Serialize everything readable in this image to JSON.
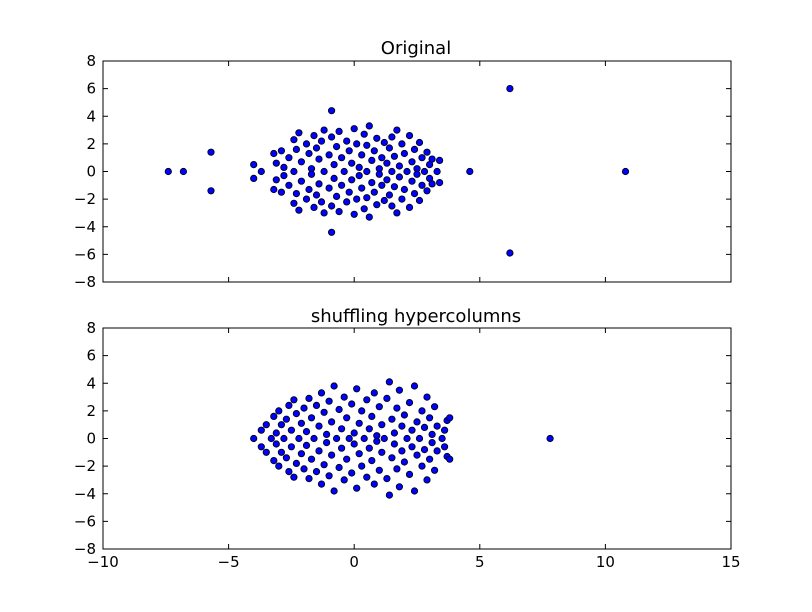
{
  "chart_data": [
    {
      "type": "scatter",
      "title": "Original",
      "xlabel": "",
      "ylabel": "",
      "xlim": [
        -10,
        15
      ],
      "ylim": [
        -8,
        8
      ],
      "xticks": [
        -10,
        -5,
        0,
        5,
        10,
        15
      ],
      "yticks": [
        -8,
        -6,
        -4,
        -2,
        0,
        2,
        4,
        6,
        8
      ],
      "show_x_tick_labels": false,
      "grid": false,
      "marker_color": "#0000ff",
      "points": [
        [
          -7.4,
          0
        ],
        [
          -6.8,
          0
        ],
        [
          -5.7,
          1.4
        ],
        [
          -5.7,
          -1.4
        ],
        [
          4.6,
          0
        ],
        [
          10.8,
          0
        ],
        [
          6.2,
          6.0
        ],
        [
          6.2,
          -5.9
        ],
        [
          -0.9,
          4.4
        ],
        [
          -0.9,
          -4.4
        ],
        [
          -4.0,
          0.5
        ],
        [
          -4.0,
          -0.5
        ],
        [
          -3.7,
          0
        ],
        [
          -3.2,
          1.3
        ],
        [
          -3.2,
          -1.3
        ],
        [
          -3.1,
          0.6
        ],
        [
          -3.1,
          -0.6
        ],
        [
          -2.9,
          1.5
        ],
        [
          -2.9,
          -1.5
        ],
        [
          -2.8,
          0.3
        ],
        [
          -2.8,
          -0.3
        ],
        [
          -2.6,
          1.0
        ],
        [
          -2.6,
          -1.0
        ],
        [
          -2.4,
          2.3
        ],
        [
          -2.4,
          -2.3
        ],
        [
          -2.4,
          0
        ],
        [
          -2.3,
          1.6
        ],
        [
          -2.3,
          -1.6
        ],
        [
          -2.2,
          2.8
        ],
        [
          -2.2,
          -2.8
        ],
        [
          -2.1,
          0.7
        ],
        [
          -2.1,
          -0.7
        ],
        [
          -1.9,
          2.0
        ],
        [
          -1.9,
          -2.0
        ],
        [
          -1.8,
          1.3
        ],
        [
          -1.8,
          -1.3
        ],
        [
          -1.7,
          0.2
        ],
        [
          -1.7,
          -0.2
        ],
        [
          -1.6,
          2.6
        ],
        [
          -1.6,
          -2.6
        ],
        [
          -1.5,
          1.7
        ],
        [
          -1.5,
          -1.7
        ],
        [
          -1.4,
          0.9
        ],
        [
          -1.4,
          -0.9
        ],
        [
          -1.3,
          2.2
        ],
        [
          -1.3,
          -2.2
        ],
        [
          -1.2,
          0
        ],
        [
          -1.2,
          3.0
        ],
        [
          -1.2,
          -3.0
        ],
        [
          -1.0,
          1.2
        ],
        [
          -1.0,
          -1.2
        ],
        [
          -0.9,
          2.5
        ],
        [
          -0.9,
          -2.5
        ],
        [
          -0.8,
          0.5
        ],
        [
          -0.8,
          -0.5
        ],
        [
          -0.7,
          1.8
        ],
        [
          -0.7,
          -1.8
        ],
        [
          -0.6,
          2.9
        ],
        [
          -0.6,
          -2.9
        ],
        [
          -0.5,
          1.0
        ],
        [
          -0.5,
          -1.0
        ],
        [
          -0.4,
          0
        ],
        [
          -0.3,
          2.2
        ],
        [
          -0.3,
          -2.2
        ],
        [
          -0.2,
          1.5
        ],
        [
          -0.2,
          -1.5
        ],
        [
          -0.1,
          0.6
        ],
        [
          -0.1,
          -0.6
        ],
        [
          0.0,
          3.1
        ],
        [
          0.0,
          -3.1
        ],
        [
          0.1,
          2.0
        ],
        [
          0.1,
          -2.0
        ],
        [
          0.2,
          0.3
        ],
        [
          0.2,
          -0.3
        ],
        [
          0.3,
          1.2
        ],
        [
          0.3,
          -1.2
        ],
        [
          0.4,
          2.7
        ],
        [
          0.4,
          -2.7
        ],
        [
          0.5,
          0
        ],
        [
          0.5,
          1.9
        ],
        [
          0.5,
          -1.9
        ],
        [
          0.6,
          3.3
        ],
        [
          0.6,
          -3.3
        ],
        [
          0.7,
          0.8
        ],
        [
          0.7,
          -0.8
        ],
        [
          0.8,
          1.5
        ],
        [
          0.8,
          -1.5
        ],
        [
          0.9,
          2.4
        ],
        [
          0.9,
          -2.4
        ],
        [
          1.0,
          0.2
        ],
        [
          1.0,
          -0.2
        ],
        [
          1.1,
          1.0
        ],
        [
          1.1,
          -1.0
        ],
        [
          1.2,
          2.1
        ],
        [
          1.2,
          -2.1
        ],
        [
          1.3,
          0.6
        ],
        [
          1.3,
          -0.6
        ],
        [
          1.4,
          1.7
        ],
        [
          1.4,
          -1.7
        ],
        [
          1.5,
          0
        ],
        [
          1.5,
          2.5
        ],
        [
          1.5,
          -2.5
        ],
        [
          1.6,
          1.1
        ],
        [
          1.6,
          -1.1
        ],
        [
          1.7,
          3.0
        ],
        [
          1.7,
          -3.0
        ],
        [
          1.8,
          0.4
        ],
        [
          1.8,
          -0.4
        ],
        [
          1.9,
          2.0
        ],
        [
          1.9,
          -2.0
        ],
        [
          2.0,
          1.3
        ],
        [
          2.0,
          -1.3
        ],
        [
          2.1,
          0
        ],
        [
          2.2,
          2.6
        ],
        [
          2.2,
          -2.6
        ],
        [
          2.3,
          0.7
        ],
        [
          2.3,
          -0.7
        ],
        [
          2.4,
          1.6
        ],
        [
          2.4,
          -1.6
        ],
        [
          2.5,
          0.2
        ],
        [
          2.5,
          -0.2
        ],
        [
          2.6,
          2.1
        ],
        [
          2.6,
          -2.1
        ],
        [
          2.7,
          1.0
        ],
        [
          2.7,
          -1.0
        ],
        [
          2.8,
          0
        ],
        [
          2.9,
          1.4
        ],
        [
          2.9,
          -1.4
        ],
        [
          3.0,
          0.5
        ],
        [
          3.0,
          -0.5
        ],
        [
          3.1,
          0.9
        ],
        [
          3.1,
          -0.9
        ],
        [
          3.3,
          0
        ],
        [
          3.4,
          0.8
        ],
        [
          3.4,
          -0.8
        ]
      ]
    },
    {
      "type": "scatter",
      "title": "shuffling hypercolumns",
      "xlabel": "",
      "ylabel": "",
      "xlim": [
        -10,
        15
      ],
      "ylim": [
        -8,
        8
      ],
      "xticks": [
        -10,
        -5,
        0,
        5,
        10,
        15
      ],
      "yticks": [
        -8,
        -6,
        -4,
        -2,
        0,
        2,
        4,
        6,
        8
      ],
      "show_x_tick_labels": true,
      "grid": false,
      "marker_color": "#0000ff",
      "points": [
        [
          7.8,
          0
        ],
        [
          1.4,
          4.1
        ],
        [
          1.4,
          -4.1
        ],
        [
          -4.0,
          0
        ],
        [
          -3.7,
          0.6
        ],
        [
          -3.7,
          -0.6
        ],
        [
          -3.5,
          1.0
        ],
        [
          -3.5,
          -1.0
        ],
        [
          -3.3,
          0
        ],
        [
          -3.2,
          1.6
        ],
        [
          -3.2,
          -1.6
        ],
        [
          -3.1,
          0.4
        ],
        [
          -3.1,
          -0.4
        ],
        [
          -3.0,
          2.0
        ],
        [
          -3.0,
          -2.0
        ],
        [
          -2.9,
          1.0
        ],
        [
          -2.9,
          -1.0
        ],
        [
          -2.8,
          0
        ],
        [
          -2.7,
          1.4
        ],
        [
          -2.7,
          -1.4
        ],
        [
          -2.6,
          2.4
        ],
        [
          -2.6,
          -2.4
        ],
        [
          -2.5,
          0.6
        ],
        [
          -2.5,
          -0.6
        ],
        [
          -2.4,
          2.8
        ],
        [
          -2.4,
          -2.8
        ],
        [
          -2.3,
          1.8
        ],
        [
          -2.3,
          -1.8
        ],
        [
          -2.2,
          0
        ],
        [
          -2.1,
          1.1
        ],
        [
          -2.1,
          -1.1
        ],
        [
          -2.0,
          2.2
        ],
        [
          -2.0,
          -2.2
        ],
        [
          -1.9,
          0.5
        ],
        [
          -1.9,
          -0.5
        ],
        [
          -1.8,
          2.9
        ],
        [
          -1.8,
          -2.9
        ],
        [
          -1.7,
          1.5
        ],
        [
          -1.7,
          -1.5
        ],
        [
          -1.6,
          0
        ],
        [
          -1.5,
          2.4
        ],
        [
          -1.5,
          -2.4
        ],
        [
          -1.4,
          0.9
        ],
        [
          -1.4,
          -0.9
        ],
        [
          -1.3,
          3.3
        ],
        [
          -1.3,
          -3.3
        ],
        [
          -1.2,
          1.9
        ],
        [
          -1.2,
          -1.9
        ],
        [
          -1.1,
          0.3
        ],
        [
          -1.1,
          -0.3
        ],
        [
          -1.0,
          2.7
        ],
        [
          -1.0,
          -2.7
        ],
        [
          -0.9,
          1.2
        ],
        [
          -0.9,
          -1.2
        ],
        [
          -0.8,
          3.8
        ],
        [
          -0.8,
          -3.8
        ],
        [
          -0.7,
          0
        ],
        [
          -0.6,
          2.1
        ],
        [
          -0.6,
          -2.1
        ],
        [
          -0.5,
          0.7
        ],
        [
          -0.5,
          -0.7
        ],
        [
          -0.4,
          3.0
        ],
        [
          -0.4,
          -3.0
        ],
        [
          -0.3,
          1.5
        ],
        [
          -0.3,
          -1.5
        ],
        [
          -0.2,
          0
        ],
        [
          -0.1,
          2.5
        ],
        [
          -0.1,
          -2.5
        ],
        [
          0.0,
          0.4
        ],
        [
          0.0,
          -0.4
        ],
        [
          0.1,
          3.6
        ],
        [
          0.1,
          -3.6
        ],
        [
          0.2,
          1.1
        ],
        [
          0.2,
          -1.1
        ],
        [
          0.3,
          2.0
        ],
        [
          0.3,
          -2.0
        ],
        [
          0.4,
          0
        ],
        [
          0.5,
          2.8
        ],
        [
          0.5,
          -2.8
        ],
        [
          0.6,
          0.7
        ],
        [
          0.6,
          -0.7
        ],
        [
          0.7,
          1.6
        ],
        [
          0.7,
          -1.6
        ],
        [
          0.8,
          3.3
        ],
        [
          0.8,
          -3.3
        ],
        [
          0.9,
          0.2
        ],
        [
          0.9,
          -0.2
        ],
        [
          1.0,
          2.3
        ],
        [
          1.0,
          -2.3
        ],
        [
          1.1,
          1.0
        ],
        [
          1.1,
          -1.0
        ],
        [
          1.2,
          0
        ],
        [
          1.3,
          2.9
        ],
        [
          1.3,
          -2.9
        ],
        [
          1.5,
          1.4
        ],
        [
          1.5,
          -1.4
        ],
        [
          1.6,
          0.4
        ],
        [
          1.6,
          -0.4
        ],
        [
          1.7,
          2.2
        ],
        [
          1.7,
          -2.2
        ],
        [
          1.8,
          3.5
        ],
        [
          1.8,
          -3.5
        ],
        [
          1.9,
          0.9
        ],
        [
          1.9,
          -0.9
        ],
        [
          2.0,
          1.7
        ],
        [
          2.0,
          -1.7
        ],
        [
          2.1,
          0
        ],
        [
          2.2,
          2.6
        ],
        [
          2.2,
          -2.6
        ],
        [
          2.3,
          0.6
        ],
        [
          2.3,
          -0.6
        ],
        [
          2.4,
          3.8
        ],
        [
          2.4,
          -3.8
        ],
        [
          2.5,
          1.2
        ],
        [
          2.5,
          -1.2
        ],
        [
          2.6,
          0
        ],
        [
          2.7,
          2.0
        ],
        [
          2.7,
          -2.0
        ],
        [
          2.8,
          0.8
        ],
        [
          2.8,
          -0.8
        ],
        [
          2.9,
          3.0
        ],
        [
          2.9,
          -3.0
        ],
        [
          3.0,
          1.5
        ],
        [
          3.0,
          -1.5
        ],
        [
          3.1,
          0.3
        ],
        [
          3.1,
          -0.3
        ],
        [
          3.2,
          2.3
        ],
        [
          3.2,
          -2.3
        ],
        [
          3.3,
          0.9
        ],
        [
          3.3,
          -0.9
        ],
        [
          3.5,
          0
        ],
        [
          3.6,
          0.6
        ],
        [
          3.6,
          -0.6
        ],
        [
          3.7,
          1.3
        ],
        [
          3.7,
          -1.3
        ],
        [
          3.8,
          1.5
        ],
        [
          3.8,
          -1.5
        ]
      ]
    }
  ]
}
